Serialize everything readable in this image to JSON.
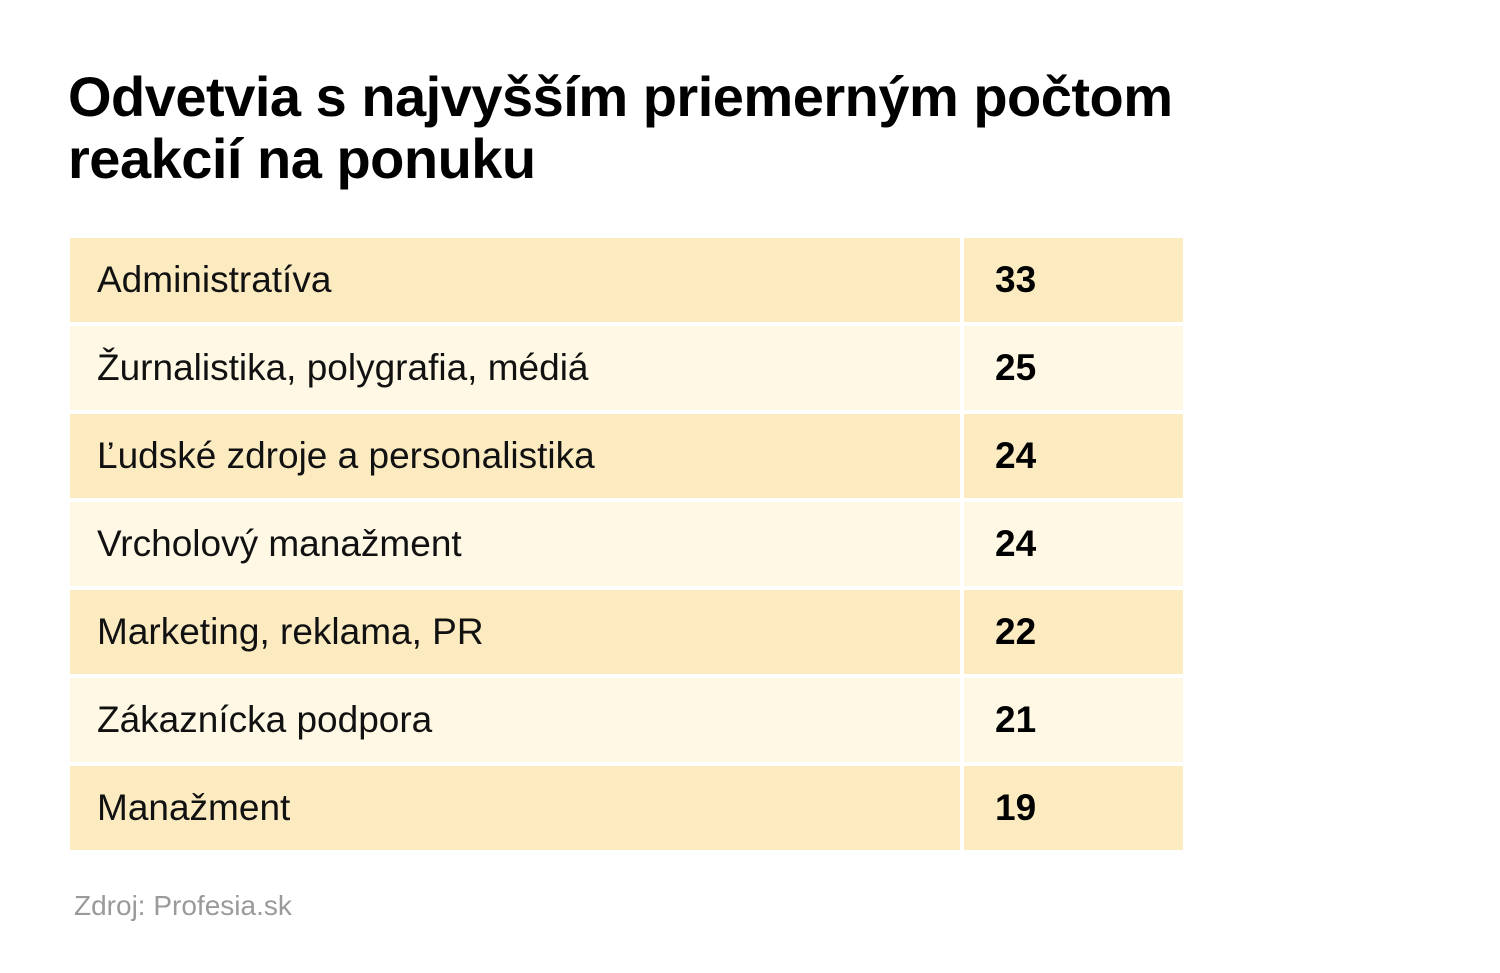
{
  "title": "Odvetvia s najvyšším priemerným počtom reakcií na ponuku",
  "source": "Zdroj: Profesia.sk",
  "colors": {
    "row_dark": "#fcebc0",
    "row_light": "#fef8e5",
    "source_text": "#9a9a9a"
  },
  "chart_data": {
    "type": "table",
    "title": "Odvetvia s najvyšším priemerným počtom reakcií na ponuku",
    "rows": [
      {
        "label": "Administratíva",
        "value": 33
      },
      {
        "label": "Žurnalistika, polygrafia, médiá",
        "value": 25
      },
      {
        "label": "Ľudské zdroje a personalistika",
        "value": 24
      },
      {
        "label": "Vrcholový manažment",
        "value": 24
      },
      {
        "label": "Marketing, reklama, PR",
        "value": 22
      },
      {
        "label": "Zákaznícka podpora",
        "value": 21
      },
      {
        "label": "Manažment",
        "value": 19
      }
    ]
  }
}
